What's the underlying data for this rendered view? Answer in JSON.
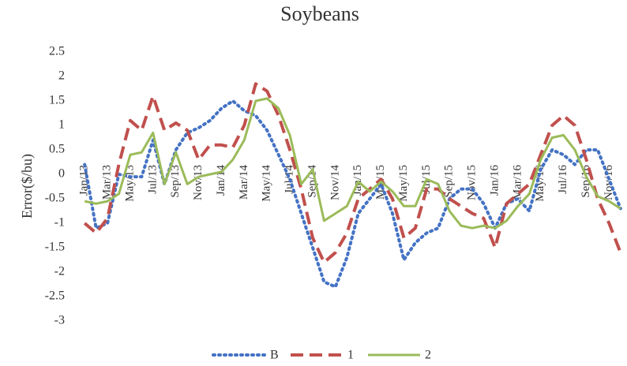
{
  "chart_data": {
    "type": "line",
    "title": "Soybeans",
    "y_label": "Error($/bu)",
    "categories": [
      "Jan/13",
      null,
      "Mar/13",
      null,
      "May/13",
      null,
      "Jul/13",
      null,
      "Sep/13",
      null,
      "Nov/13",
      null,
      "Jan/14",
      null,
      "Mar/14",
      null,
      "May/14",
      null,
      "Jul/14",
      null,
      "Sep/14",
      null,
      "Nov/14",
      null,
      "Jan/15",
      null,
      "Mar/15",
      null,
      "May/15",
      null,
      "Jul/15",
      null,
      "Sep/15",
      null,
      "Nov/15",
      null,
      "Jan/16",
      null,
      "Mar/16",
      null,
      "May/16",
      null,
      "Jul/16",
      null,
      "Sep/16",
      null,
      "Nov/16",
      null
    ],
    "series": [
      {
        "name": "B",
        "color": "#4472c4",
        "dash": "dotted",
        "values": [
          0.2,
          -1.1,
          -1.0,
          0.0,
          -0.05,
          -0.05,
          0.7,
          -0.2,
          0.5,
          0.85,
          0.95,
          1.1,
          1.35,
          1.5,
          1.3,
          1.2,
          0.9,
          0.4,
          -0.1,
          -0.8,
          -1.5,
          -2.2,
          -2.3,
          -1.7,
          -0.8,
          -0.5,
          -0.2,
          -0.8,
          -1.75,
          -1.4,
          -1.2,
          -1.1,
          -0.5,
          -0.3,
          -0.3,
          -0.6,
          -1.1,
          -0.6,
          -0.5,
          -0.75,
          0.1,
          0.5,
          0.4,
          0.2,
          0.5,
          0.5,
          -0.1,
          -0.7
        ]
      },
      {
        "name": "1",
        "color": "#c0504d",
        "dash": "dashed",
        "values": [
          -1.0,
          -1.2,
          -0.9,
          0.2,
          1.1,
          0.9,
          1.6,
          0.9,
          1.05,
          0.9,
          0.3,
          0.6,
          0.6,
          0.55,
          1.0,
          1.85,
          1.7,
          1.2,
          0.5,
          -0.3,
          -1.3,
          -1.8,
          -1.6,
          -1.2,
          -0.5,
          -0.3,
          -0.1,
          -0.5,
          -1.3,
          -1.1,
          -0.3,
          -0.3,
          -0.5,
          -0.65,
          -0.8,
          -0.9,
          -1.5,
          -0.6,
          -0.4,
          -0.2,
          0.4,
          1.0,
          1.2,
          1.0,
          0.3,
          -0.5,
          -1.0,
          -1.6
        ]
      },
      {
        "name": "2",
        "color": "#9bbb59",
        "dash": "solid",
        "values": [
          -0.55,
          -0.6,
          -0.55,
          -0.4,
          0.4,
          0.45,
          0.85,
          -0.2,
          0.45,
          -0.2,
          -0.05,
          0.0,
          0.05,
          0.3,
          0.7,
          1.5,
          1.55,
          1.35,
          0.8,
          -0.2,
          0.1,
          -0.95,
          -0.8,
          -0.65,
          -0.15,
          -0.35,
          -0.15,
          -0.35,
          -0.65,
          -0.65,
          -0.1,
          -0.2,
          -0.75,
          -1.05,
          -1.1,
          -1.05,
          -1.1,
          -0.95,
          -0.65,
          -0.4,
          0.3,
          0.75,
          0.8,
          0.5,
          -0.05,
          -0.45,
          -0.55,
          -0.7
        ]
      }
    ],
    "ylim": [
      -3,
      2.5
    ],
    "yticks": [
      2.5,
      2,
      1.5,
      1,
      0.5,
      0,
      -0.5,
      -1,
      -1.5,
      -2,
      -2.5,
      -3
    ],
    "legend": "bottom",
    "grid": false
  }
}
